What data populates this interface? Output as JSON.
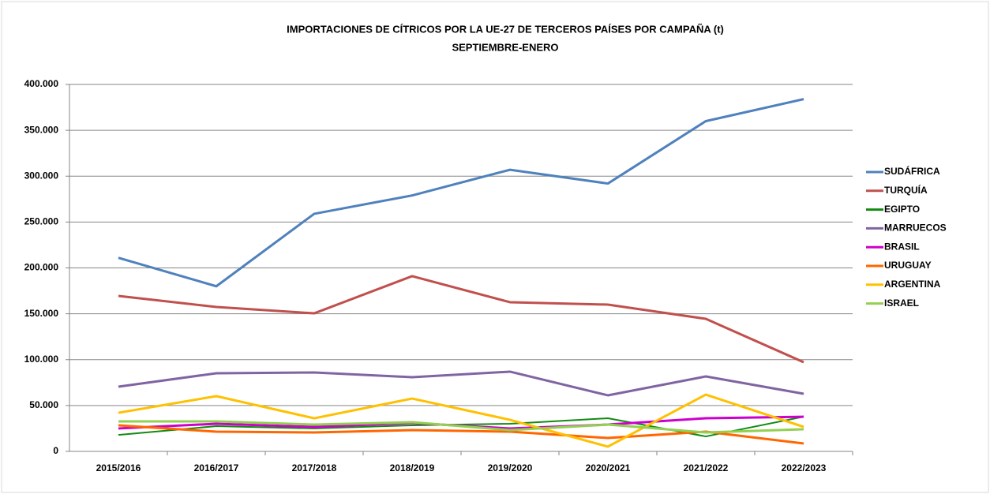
{
  "chart_data": {
    "type": "line",
    "title": "IMPORTACIONES DE CÍTRICOS POR LA UE-27 DE TERCEROS PAÍSES POR CAMPAÑA  (t)",
    "subtitle": "SEPTIEMBRE-ENERO",
    "categories": [
      "2015/2016",
      "2016/2017",
      "2017/2018",
      "2018/2019",
      "2019/2020",
      "2020/2021",
      "2021/2022",
      "2022/2023"
    ],
    "series": [
      {
        "name": "SUDÁFRICA",
        "color": "#4f81bd",
        "values": [
          211000,
          180000,
          259000,
          279000,
          307000,
          292000,
          360000,
          384000
        ]
      },
      {
        "name": "TURQUÍA",
        "color": "#c0504d",
        "values": [
          169500,
          157400,
          150500,
          191000,
          162600,
          160000,
          144500,
          97200
        ]
      },
      {
        "name": "EGIPTO",
        "color": "#138a13",
        "values": [
          18000,
          27500,
          25000,
          28400,
          30100,
          36100,
          16300,
          37800
        ]
      },
      {
        "name": "MARRUECOS",
        "color": "#8064a2",
        "values": [
          70500,
          85200,
          86000,
          80900,
          86900,
          61100,
          81700,
          62800
        ]
      },
      {
        "name": "BRASIL",
        "color": "#cc00cc",
        "values": [
          25000,
          30100,
          26700,
          31000,
          25000,
          29200,
          36100,
          37800
        ]
      },
      {
        "name": "URUGUAY",
        "color": "#ff6600",
        "values": [
          28400,
          21500,
          20600,
          23200,
          21500,
          14600,
          21500,
          8600
        ]
      },
      {
        "name": "ARGENTINA",
        "color": "#ffc000",
        "values": [
          42100,
          60200,
          36100,
          57600,
          34400,
          5200,
          61900,
          26700
        ]
      },
      {
        "name": "ISRAEL",
        "color": "#92d050",
        "values": [
          32700,
          32700,
          29200,
          31800,
          23200,
          29200,
          20600,
          24100
        ]
      }
    ],
    "ylim": [
      0,
      400000
    ],
    "yticks": [
      0,
      {
        "value": 50000,
        "label": "50.000"
      },
      {
        "value": 100000,
        "label": "100.000"
      },
      {
        "value": 150000,
        "label": "150.000"
      },
      {
        "value": 200000,
        "label": "200.000"
      },
      {
        "value": 250000,
        "label": "250.000"
      },
      {
        "value": 300000,
        "label": "300.000"
      },
      {
        "value": 350000,
        "label": "350.000"
      },
      {
        "value": 400000,
        "label": "400.000"
      }
    ],
    "grid": true
  }
}
